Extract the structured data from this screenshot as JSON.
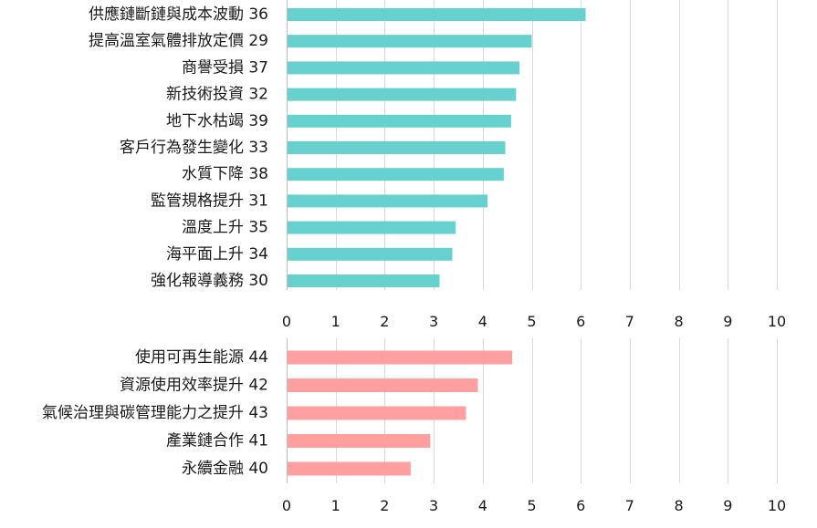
{
  "chart_data": [
    {
      "type": "bar",
      "orientation": "horizontal",
      "title": "",
      "xlabel": "",
      "ylabel": "",
      "xlim": [
        0,
        10
      ],
      "x_ticks": [
        "0",
        "1",
        "2",
        "3",
        "4",
        "5",
        "6",
        "7",
        "8",
        "9",
        "10"
      ],
      "grid": true,
      "bar_color": "#66d1cf",
      "categories": [
        "供應鏈斷鏈與成本波動 36",
        "提高溫室氣體排放定價 29",
        "商譽受損 37",
        "新技術投資 32",
        "地下水枯竭 39",
        "客戶行為發生變化 33",
        "水質下降 38",
        "監管規格提升 31",
        "溫度上升 35",
        "海平面上升 34",
        "強化報導義務 30"
      ],
      "values": [
        6.1,
        5.0,
        4.75,
        4.68,
        4.58,
        4.46,
        4.43,
        4.1,
        3.45,
        3.38,
        3.12
      ]
    },
    {
      "type": "bar",
      "orientation": "horizontal",
      "title": "",
      "xlabel": "",
      "ylabel": "",
      "xlim": [
        0,
        10
      ],
      "x_ticks": [
        "0",
        "1",
        "2",
        "3",
        "4",
        "5",
        "6",
        "7",
        "8",
        "9",
        "10"
      ],
      "grid": true,
      "bar_color": "#ff9f9f",
      "categories": [
        "使用可再生能源 44",
        "資源使用效率提升 42",
        "氣候治理與碳管理能力之提升 43",
        "產業鏈合作 41",
        "永續金融 40"
      ],
      "values": [
        4.6,
        3.9,
        3.66,
        2.93,
        2.53
      ]
    }
  ]
}
